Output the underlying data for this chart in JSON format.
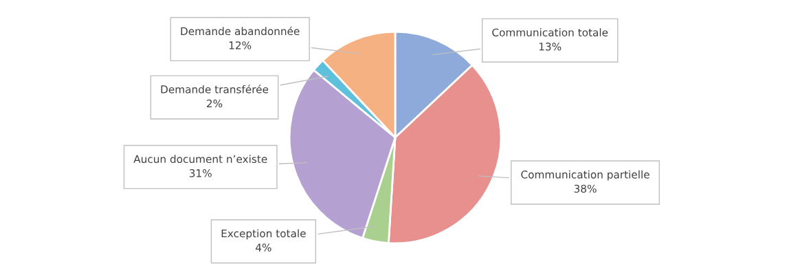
{
  "chart_data": {
    "type": "pie",
    "categories": [
      "Communication totale",
      "Communication partielle",
      "Exception totale",
      "Aucun document n’existe",
      "Demande transférée",
      "Demande abandonnée"
    ],
    "values": [
      13,
      38,
      4,
      31,
      2,
      12
    ],
    "colors": [
      "#8eaadb",
      "#e8908e",
      "#a9d08e",
      "#b4a1d1",
      "#5fc0dc",
      "#f6b183"
    ],
    "value_labels": [
      "13%",
      "38%",
      "4%",
      "31%",
      "2%",
      "12%"
    ]
  }
}
